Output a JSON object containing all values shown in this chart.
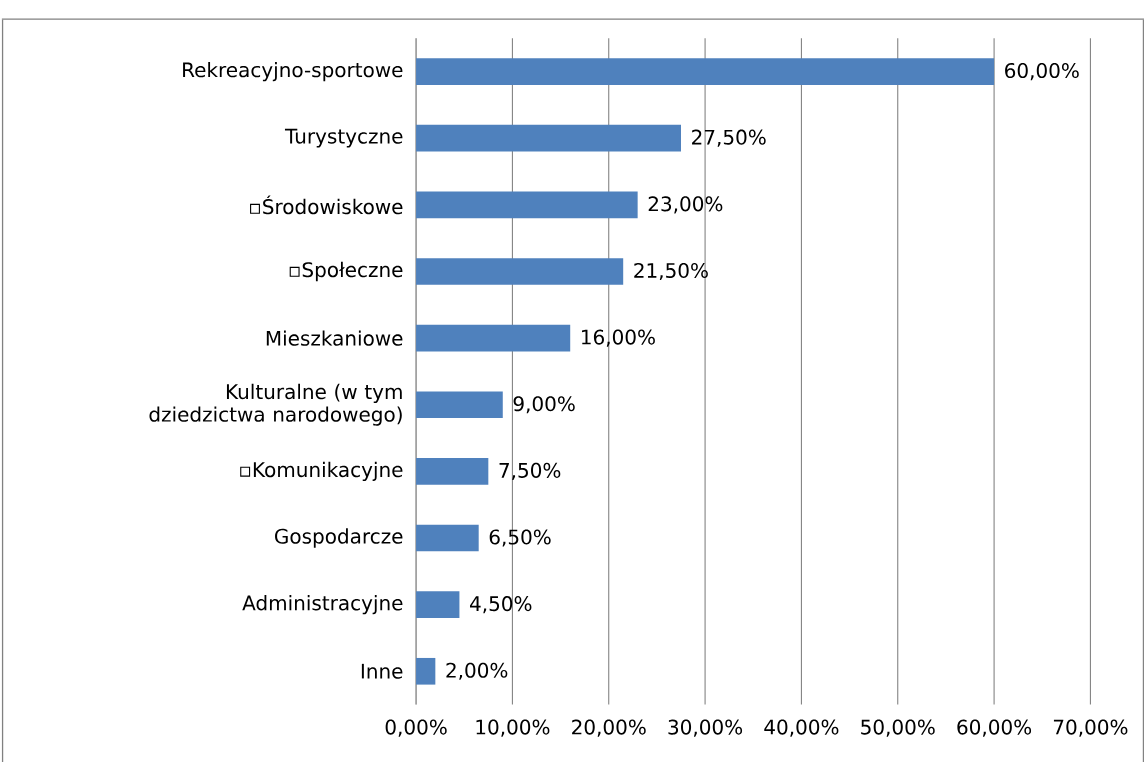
{
  "chart_data": {
    "type": "bar",
    "orientation": "horizontal",
    "categories": [
      "Rekreacyjno-sportowe",
      "Turystyczne",
      "▫Środowiskowe",
      "▫Społeczne",
      "Mieszkaniowe",
      "Kulturalne (w tym dziedzictwa narodowego)",
      "▫Komunikacyjne",
      "Gospodarcze",
      "Administracyjne",
      "Inne"
    ],
    "values": [
      60,
      27.5,
      23,
      21.5,
      16,
      9,
      7.5,
      6.5,
      4.5,
      2
    ],
    "value_labels": [
      "60,00%",
      "27,50%",
      "23,00%",
      "21,50%",
      "16,00%",
      "9,00%",
      "7,50%",
      "6,50%",
      "4,50%",
      "2,00%"
    ],
    "color": "#4f81bd",
    "xlim": [
      0,
      70
    ],
    "xticks": [
      {
        "value": 0,
        "label": "0,00%"
      },
      {
        "value": 10,
        "label": "10,00%"
      },
      {
        "value": 20,
        "label": "20,00%"
      },
      {
        "value": 30,
        "label": "30,00%"
      },
      {
        "value": 40,
        "label": "40,00%"
      },
      {
        "value": 50,
        "label": "50,00%"
      },
      {
        "value": 60,
        "label": "60,00%"
      },
      {
        "value": 70,
        "label": "70,00%"
      }
    ],
    "grid": "x"
  }
}
